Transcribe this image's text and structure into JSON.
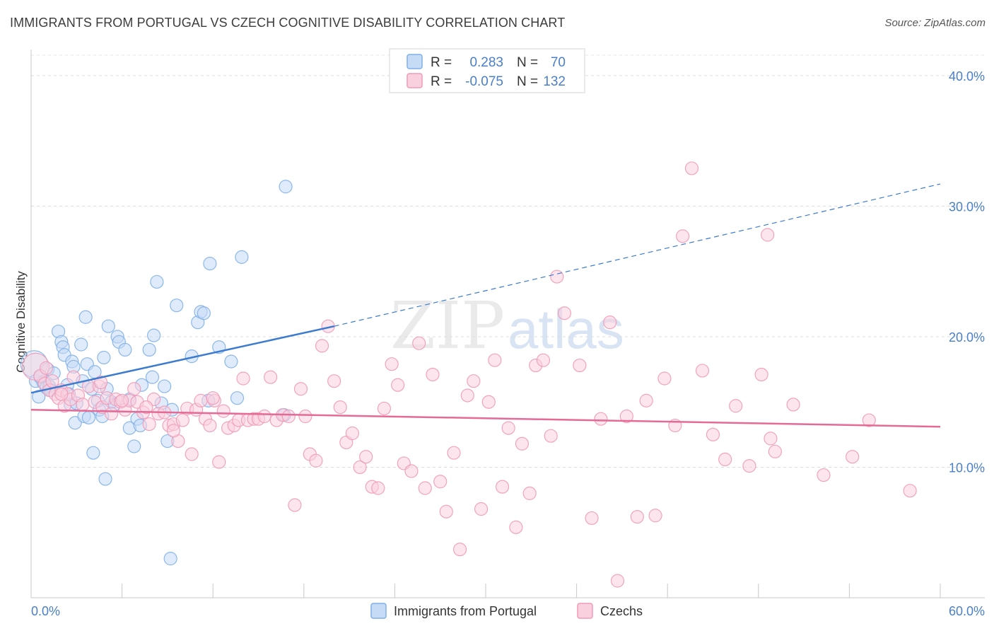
{
  "title": "IMMIGRANTS FROM PORTUGAL VS CZECH COGNITIVE DISABILITY CORRELATION CHART",
  "source": "Source: ZipAtlas.com",
  "watermark": {
    "zip": "ZIP",
    "atlas": "atlas"
  },
  "legend": {
    "rows": [
      {
        "r_label": "R =",
        "r_value": "0.283",
        "n_label": "N =",
        "n_value": "70",
        "color": "#7fb0e8",
        "fill": "#c5dbf6"
      },
      {
        "r_label": "R =",
        "r_value": "-0.075",
        "n_label": "N =",
        "n_value": "132",
        "color": "#f09ab8",
        "fill": "#f9d0de"
      }
    ]
  },
  "bottom_legend": [
    {
      "label": "Immigrants from Portugal",
      "color": "#7fb0e8",
      "fill": "#c5dbf6"
    },
    {
      "label": "Czechs",
      "color": "#f09ab8",
      "fill": "#f9d0de"
    }
  ],
  "chart_data": {
    "type": "scatter",
    "title": "IMMIGRANTS FROM PORTUGAL VS CZECH COGNITIVE DISABILITY CORRELATION CHART",
    "xlabel": "",
    "ylabel": "Cognitive Disability",
    "xlim": [
      0,
      60
    ],
    "ylim": [
      0,
      42
    ],
    "x_tick_labels": [
      "0.0%",
      "60.0%"
    ],
    "y_ticks": [
      10,
      20,
      30,
      40
    ],
    "y_tick_labels": [
      "10.0%",
      "20.0%",
      "30.0%",
      "40.0%"
    ],
    "grid": true,
    "series": [
      {
        "name": "Immigrants from Portugal",
        "color": "#4a86d8",
        "fill": "#c5dbf6",
        "trend": {
          "x0": 0,
          "y0": 15.7,
          "x1": 20,
          "y1": 20.8,
          "extend_to_x": 60,
          "extend_to_y": 31.7
        },
        "points": [
          [
            0.2,
            17.9
          ],
          [
            0.3,
            16.6
          ],
          [
            0.5,
            15.4
          ],
          [
            0.6,
            16.9
          ],
          [
            0.8,
            16.5
          ],
          [
            1.0,
            16.1
          ],
          [
            1.1,
            17.5
          ],
          [
            1.2,
            16.2
          ],
          [
            1.3,
            15.9
          ],
          [
            1.5,
            17.2
          ],
          [
            1.8,
            20.4
          ],
          [
            2.0,
            19.6
          ],
          [
            2.1,
            19.2
          ],
          [
            2.2,
            18.6
          ],
          [
            2.4,
            16.3
          ],
          [
            2.5,
            15.6
          ],
          [
            2.6,
            14.8
          ],
          [
            2.7,
            18.1
          ],
          [
            2.8,
            17.7
          ],
          [
            2.9,
            13.4
          ],
          [
            3.0,
            14.9
          ],
          [
            3.3,
            19.4
          ],
          [
            3.4,
            16.6
          ],
          [
            3.5,
            13.9
          ],
          [
            3.6,
            21.5
          ],
          [
            3.7,
            17.9
          ],
          [
            3.8,
            13.8
          ],
          [
            4.0,
            16.0
          ],
          [
            4.1,
            11.1
          ],
          [
            4.2,
            17.3
          ],
          [
            4.4,
            15.1
          ],
          [
            4.5,
            14.4
          ],
          [
            4.7,
            13.9
          ],
          [
            4.8,
            18.4
          ],
          [
            4.9,
            9.1
          ],
          [
            5.0,
            16.0
          ],
          [
            5.1,
            20.8
          ],
          [
            5.3,
            15.0
          ],
          [
            5.5,
            14.8
          ],
          [
            5.7,
            20.0
          ],
          [
            5.8,
            19.6
          ],
          [
            6.2,
            19.0
          ],
          [
            6.5,
            13.0
          ],
          [
            6.5,
            15.2
          ],
          [
            6.8,
            11.6
          ],
          [
            7.0,
            13.7
          ],
          [
            7.2,
            13.2
          ],
          [
            7.3,
            16.3
          ],
          [
            7.8,
            19.0
          ],
          [
            8.0,
            16.9
          ],
          [
            8.1,
            20.1
          ],
          [
            8.3,
            24.2
          ],
          [
            8.6,
            14.9
          ],
          [
            8.8,
            16.2
          ],
          [
            9.0,
            12.0
          ],
          [
            9.2,
            3.0
          ],
          [
            9.3,
            14.4
          ],
          [
            9.6,
            22.4
          ],
          [
            10.6,
            18.5
          ],
          [
            11.0,
            21.1
          ],
          [
            11.2,
            21.9
          ],
          [
            11.4,
            21.8
          ],
          [
            11.7,
            15.1
          ],
          [
            11.8,
            25.6
          ],
          [
            12.4,
            19.2
          ],
          [
            13.2,
            18.1
          ],
          [
            13.6,
            15.3
          ],
          [
            13.9,
            26.1
          ],
          [
            16.7,
            14.0
          ],
          [
            16.8,
            31.5
          ]
        ]
      },
      {
        "name": "Czechs",
        "color": "#e86a94",
        "fill": "#f9d0de",
        "trend": {
          "x0": 0,
          "y0": 14.4,
          "x1": 60,
          "y1": 13.1
        },
        "points": [
          [
            0.3,
            17.7
          ],
          [
            0.6,
            17.0
          ],
          [
            0.9,
            16.4
          ],
          [
            1.2,
            15.9
          ],
          [
            1.4,
            16.6
          ],
          [
            1.6,
            15.6
          ],
          [
            1.8,
            15.3
          ],
          [
            2.0,
            15.9
          ],
          [
            2.2,
            14.7
          ],
          [
            2.4,
            15.6
          ],
          [
            2.6,
            15.2
          ],
          [
            2.8,
            16.9
          ],
          [
            3.1,
            15.5
          ],
          [
            3.4,
            14.8
          ],
          [
            3.8,
            16.2
          ],
          [
            4.2,
            15.0
          ],
          [
            4.5,
            16.2
          ],
          [
            4.7,
            14.6
          ],
          [
            5.0,
            15.3
          ],
          [
            5.3,
            14.1
          ],
          [
            5.6,
            15.2
          ],
          [
            5.9,
            15.0
          ],
          [
            6.2,
            14.4
          ],
          [
            6.5,
            15.1
          ],
          [
            6.8,
            16.0
          ],
          [
            7.0,
            15.0
          ],
          [
            7.4,
            14.2
          ],
          [
            7.8,
            13.3
          ],
          [
            8.1,
            15.2
          ],
          [
            8.4,
            14.1
          ],
          [
            8.8,
            14.2
          ],
          [
            9.1,
            13.2
          ],
          [
            9.4,
            13.3
          ],
          [
            9.7,
            12.0
          ],
          [
            10.0,
            13.6
          ],
          [
            10.3,
            14.5
          ],
          [
            10.6,
            11.0
          ],
          [
            10.9,
            14.4
          ],
          [
            11.2,
            15.1
          ],
          [
            11.5,
            13.7
          ],
          [
            11.8,
            13.2
          ],
          [
            12.1,
            15.1
          ],
          [
            12.4,
            10.4
          ],
          [
            12.7,
            14.3
          ],
          [
            13.0,
            13.0
          ],
          [
            13.4,
            13.2
          ],
          [
            13.7,
            13.6
          ],
          [
            14.0,
            16.8
          ],
          [
            14.3,
            13.6
          ],
          [
            14.7,
            13.7
          ],
          [
            15.0,
            13.7
          ],
          [
            15.4,
            13.9
          ],
          [
            15.8,
            16.9
          ],
          [
            16.2,
            13.6
          ],
          [
            16.6,
            14.0
          ],
          [
            17.0,
            13.9
          ],
          [
            17.4,
            7.1
          ],
          [
            17.8,
            16.0
          ],
          [
            18.1,
            13.9
          ],
          [
            18.4,
            11.0
          ],
          [
            18.8,
            10.5
          ],
          [
            19.2,
            19.3
          ],
          [
            19.6,
            20.8
          ],
          [
            20.0,
            16.6
          ],
          [
            20.4,
            14.6
          ],
          [
            20.8,
            11.9
          ],
          [
            21.2,
            12.6
          ],
          [
            21.7,
            10.0
          ],
          [
            22.1,
            10.8
          ],
          [
            22.5,
            8.5
          ],
          [
            22.9,
            8.4
          ],
          [
            23.3,
            14.5
          ],
          [
            23.8,
            17.9
          ],
          [
            24.2,
            16.3
          ],
          [
            24.6,
            10.3
          ],
          [
            25.1,
            9.7
          ],
          [
            25.6,
            19.5
          ],
          [
            26.0,
            8.4
          ],
          [
            26.5,
            17.1
          ],
          [
            27.0,
            8.9
          ],
          [
            27.4,
            6.6
          ],
          [
            27.9,
            11.1
          ],
          [
            28.3,
            3.7
          ],
          [
            28.8,
            15.5
          ],
          [
            29.2,
            16.6
          ],
          [
            29.7,
            6.8
          ],
          [
            30.2,
            15.0
          ],
          [
            30.6,
            18.2
          ],
          [
            31.1,
            8.5
          ],
          [
            31.5,
            13.0
          ],
          [
            32.0,
            5.4
          ],
          [
            32.4,
            11.8
          ],
          [
            32.9,
            8.0
          ],
          [
            33.3,
            17.8
          ],
          [
            33.8,
            18.2
          ],
          [
            34.3,
            12.4
          ],
          [
            34.7,
            24.6
          ],
          [
            35.2,
            21.8
          ],
          [
            36.2,
            17.8
          ],
          [
            37.0,
            6.1
          ],
          [
            37.6,
            13.7
          ],
          [
            38.2,
            21.1
          ],
          [
            38.7,
            1.3
          ],
          [
            39.3,
            13.9
          ],
          [
            40.0,
            6.2
          ],
          [
            40.6,
            15.1
          ],
          [
            41.2,
            6.3
          ],
          [
            41.8,
            16.8
          ],
          [
            42.5,
            13.2
          ],
          [
            43.0,
            27.7
          ],
          [
            43.6,
            32.9
          ],
          [
            44.3,
            17.4
          ],
          [
            45.0,
            12.5
          ],
          [
            45.8,
            10.6
          ],
          [
            46.5,
            14.7
          ],
          [
            47.4,
            10.1
          ],
          [
            48.2,
            17.1
          ],
          [
            48.6,
            27.8
          ],
          [
            48.8,
            12.2
          ],
          [
            49.1,
            11.2
          ],
          [
            50.3,
            14.8
          ],
          [
            52.3,
            9.4
          ],
          [
            54.2,
            10.8
          ],
          [
            55.3,
            13.6
          ],
          [
            58.0,
            8.2
          ],
          [
            1.0,
            17.6
          ],
          [
            2.0,
            15.6
          ],
          [
            4.6,
            16.5
          ],
          [
            6.0,
            15.1
          ],
          [
            7.6,
            14.6
          ],
          [
            9.4,
            12.8
          ],
          [
            12.0,
            15.3
          ]
        ]
      }
    ]
  }
}
